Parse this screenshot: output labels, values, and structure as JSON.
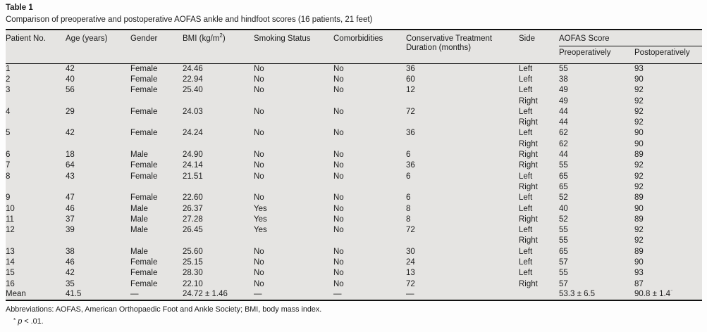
{
  "page": {
    "label": "Table 1",
    "caption": "Comparison of preoperative and postoperative AOFAS ankle and hindfoot scores (16 patients, 21 feet)"
  },
  "table": {
    "header": {
      "patient": "Patient No.",
      "age": "Age (years)",
      "gender": "Gender",
      "bmi_prefix": "BMI (kg/m",
      "bmi_sup": "2",
      "bmi_suffix": ")",
      "smoking": "Smoking Status",
      "comorbidities": "Comorbidities",
      "treatment": "Conservative Treatment Duration (months)",
      "side": "Side",
      "aofas": "AOFAS Score",
      "preop": "Preoperatively",
      "postop": "Postoperatively"
    },
    "rows": [
      [
        "1",
        "42",
        "Female",
        "24.46",
        "No",
        "No",
        "36",
        "Left",
        "55",
        "93"
      ],
      [
        "2",
        "40",
        "Female",
        "22.94",
        "No",
        "No",
        "60",
        "Left",
        "38",
        "90"
      ],
      [
        "3",
        "56",
        "Female",
        "25.40",
        "No",
        "No",
        "12",
        "Left",
        "49",
        "92"
      ],
      [
        "",
        "",
        "",
        "",
        "",
        "",
        "",
        "Right",
        "49",
        "92"
      ],
      [
        "4",
        "29",
        "Female",
        "24.03",
        "No",
        "No",
        "72",
        "Left",
        "44",
        "92"
      ],
      [
        "",
        "",
        "",
        "",
        "",
        "",
        "",
        "Right",
        "44",
        "92"
      ],
      [
        "5",
        "42",
        "Female",
        "24.24",
        "No",
        "No",
        "36",
        "Left",
        "62",
        "90"
      ],
      [
        "",
        "",
        "",
        "",
        "",
        "",
        "",
        "Right",
        "62",
        "90"
      ],
      [
        "6",
        "18",
        "Male",
        "24.90",
        "No",
        "No",
        "6",
        "Right",
        "44",
        "89"
      ],
      [
        "7",
        "64",
        "Female",
        "24.14",
        "No",
        "No",
        "36",
        "Right",
        "55",
        "92"
      ],
      [
        "8",
        "43",
        "Female",
        "21.51",
        "No",
        "No",
        "6",
        "Left",
        "65",
        "92"
      ],
      [
        "",
        "",
        "",
        "",
        "",
        "",
        "",
        "Right",
        "65",
        "92"
      ],
      [
        "9",
        "47",
        "Female",
        "22.60",
        "No",
        "No",
        "6",
        "Left",
        "52",
        "89"
      ],
      [
        "10",
        "46",
        "Male",
        "26.37",
        "Yes",
        "No",
        "8",
        "Left",
        "40",
        "90"
      ],
      [
        "11",
        "37",
        "Male",
        "27.28",
        "Yes",
        "No",
        "8",
        "Right",
        "52",
        "89"
      ],
      [
        "12",
        "39",
        "Male",
        "26.45",
        "Yes",
        "No",
        "72",
        "Left",
        "55",
        "92"
      ],
      [
        "",
        "",
        "",
        "",
        "",
        "",
        "",
        "Right",
        "55",
        "92"
      ],
      [
        "13",
        "38",
        "Male",
        "25.60",
        "No",
        "No",
        "30",
        "Left",
        "65",
        "89"
      ],
      [
        "14",
        "46",
        "Female",
        "25.15",
        "No",
        "No",
        "24",
        "Left",
        "57",
        "90"
      ],
      [
        "15",
        "42",
        "Female",
        "28.30",
        "No",
        "No",
        "13",
        "Left",
        "55",
        "93"
      ],
      [
        "16",
        "35",
        "Female",
        "22.10",
        "No",
        "No",
        "72",
        "Right",
        "57",
        "87"
      ],
      [
        "Mean",
        "41.5",
        "—",
        "24.72 ± 1.46",
        "—",
        "—",
        "—",
        "",
        "53.3 ± 6.5",
        {
          "text": "90.8 ± 1.4",
          "sup": "*"
        }
      ]
    ]
  },
  "footnotes": {
    "abbreviations": "Abbreviations: AOFAS, American Orthopaedic Foot and Ankle Society; BMI, body mass index.",
    "sig_marker": "*",
    "sig_p": "p",
    "sig_rest": " < .01."
  },
  "colors": {
    "table_background": "#e5e4e2",
    "rule": "#111111",
    "text": "#1c1c1c"
  }
}
